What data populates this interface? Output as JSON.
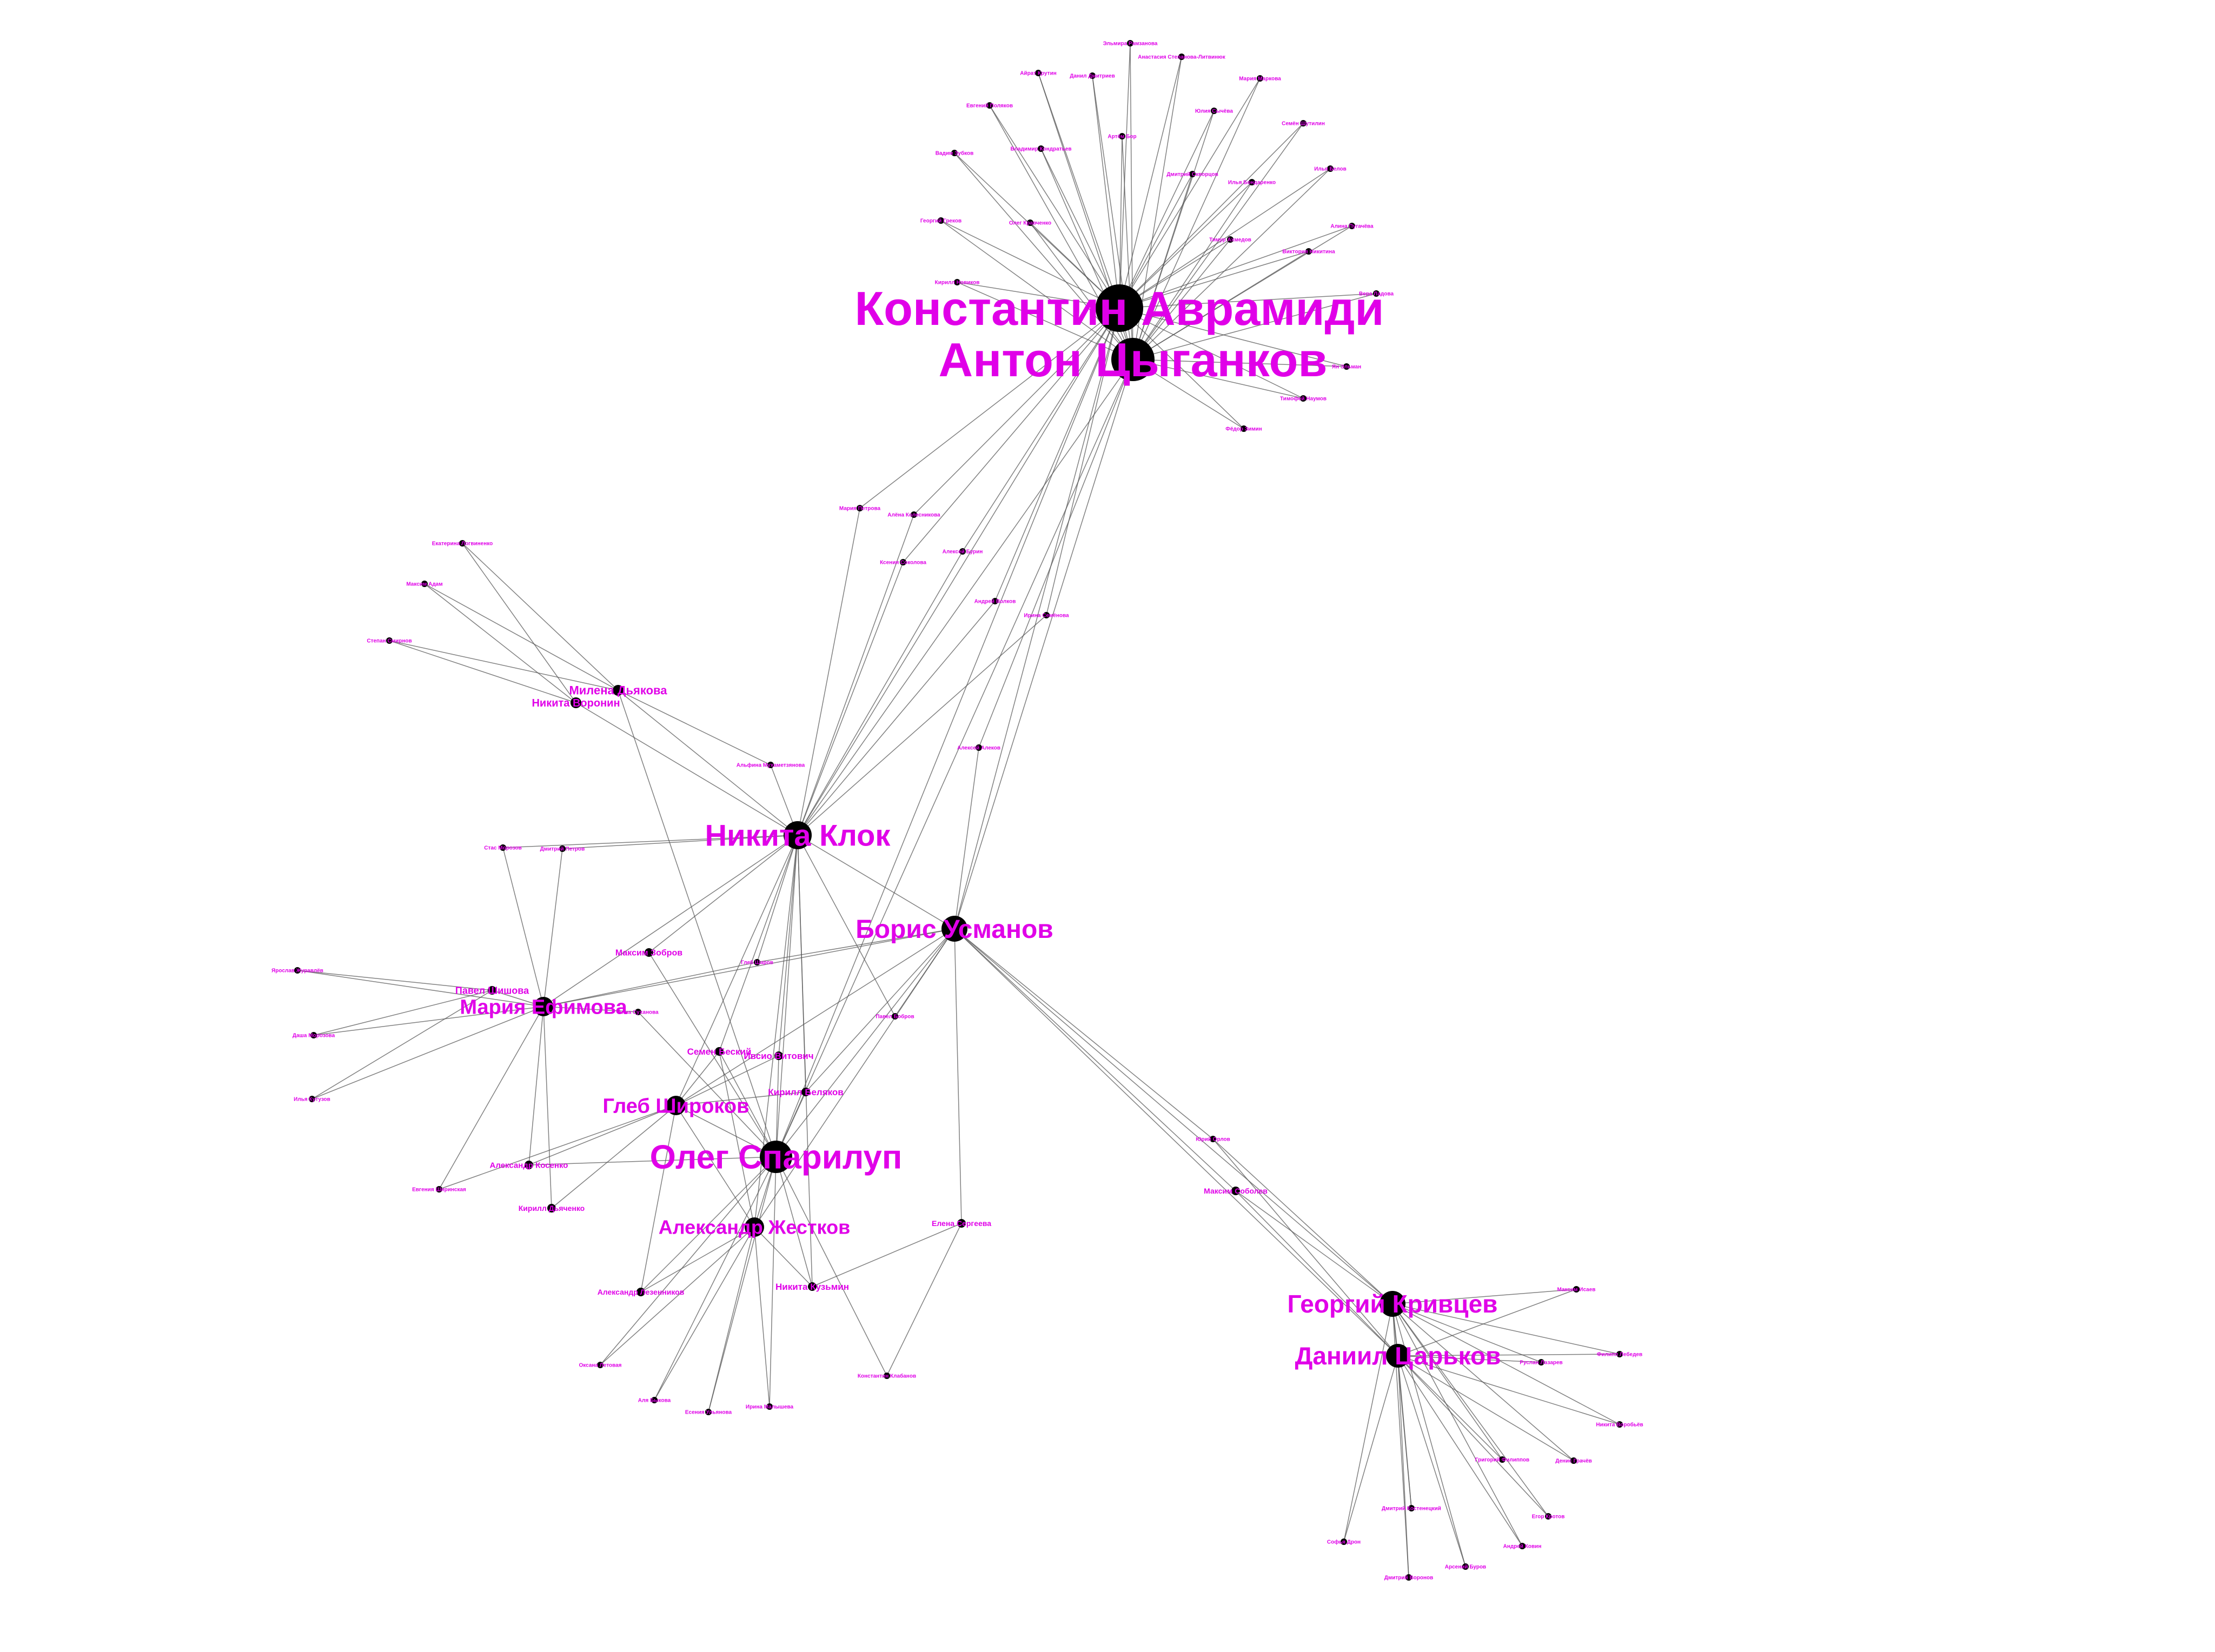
{
  "graph": {
    "colors": {
      "label": "#e000e8",
      "node": "#000000",
      "edge": "#555555",
      "background": "#ffffff"
    },
    "nodes": [
      {
        "id": "kav",
        "label": "Константин Аврамиди"
      },
      {
        "id": "acy",
        "label": "Антон Цыганков"
      },
      {
        "id": "nkl",
        "label": "Никита Клок"
      },
      {
        "id": "bus",
        "label": "Борис Усманов"
      },
      {
        "id": "osp",
        "label": "Олег Спарилуп"
      },
      {
        "id": "azh",
        "label": "Александр Жестков"
      },
      {
        "id": "gsh",
        "label": "Глеб Широков"
      },
      {
        "id": "mef",
        "label": "Мария Ефимова"
      },
      {
        "id": "gkr",
        "label": "Георгий Кривцев"
      },
      {
        "id": "dca",
        "label": "Даниил Царьков"
      },
      {
        "id": "mdy",
        "label": "Милена Дьякова"
      },
      {
        "id": "nvo",
        "label": "Никита Воронин"
      },
      {
        "id": "sbe",
        "label": "Семен Беский"
      },
      {
        "id": "iau",
        "label": "Ивсио Витович"
      },
      {
        "id": "kbe",
        "label": "Кирилл Беляков"
      },
      {
        "id": "nku",
        "label": "Никита Кузьмин"
      },
      {
        "id": "mzo",
        "label": "Максим Зобров"
      },
      {
        "id": "psh",
        "label": "Павел Шишова"
      },
      {
        "id": "ark",
        "label": "Александр Косенко"
      },
      {
        "id": "kdi",
        "label": "Кирилл Дьяченко"
      },
      {
        "id": "ash",
        "label": "Александр Лезенников"
      },
      {
        "id": "egs",
        "label": "Елена Сергеева"
      },
      {
        "id": "mso",
        "label": "Максим Соболев"
      },
      {
        "id": "p1",
        "label": "Эльмира Рамзанова"
      },
      {
        "id": "p2",
        "label": "Айрат Крутин"
      },
      {
        "id": "p3",
        "label": "Данил Дмитриев"
      },
      {
        "id": "p4",
        "label": "Анастасия Степанова-Литвинюк"
      },
      {
        "id": "p5",
        "label": "Мария Маркова"
      },
      {
        "id": "p6",
        "label": "Евгений Поляков"
      },
      {
        "id": "p7",
        "label": "Юлия Сычёва"
      },
      {
        "id": "p8",
        "label": "Семён Шутилин"
      },
      {
        "id": "p9",
        "label": "Вадим Зубков"
      },
      {
        "id": "p10",
        "label": "Владимир Кондратьев"
      },
      {
        "id": "p11",
        "label": "Артём Бор"
      },
      {
        "id": "p12",
        "label": "Дмитрий Скворцов"
      },
      {
        "id": "p13",
        "label": "Илья Белов"
      },
      {
        "id": "p14",
        "label": "Илья Бондаренко"
      },
      {
        "id": "p15",
        "label": "Георгий Греков"
      },
      {
        "id": "p16",
        "label": "Олег Кравченко"
      },
      {
        "id": "p17",
        "label": "Тимур Ахмедов"
      },
      {
        "id": "p18",
        "label": "Алина Пугачёва"
      },
      {
        "id": "p19",
        "label": "Виктория Никитина"
      },
      {
        "id": "p20",
        "label": "Кирилл Новиков"
      },
      {
        "id": "p21",
        "label": "Вера Ладова"
      },
      {
        "id": "p22",
        "label": "Ян Эльман"
      },
      {
        "id": "p23",
        "label": "Тимофей Наумов"
      },
      {
        "id": "p24",
        "label": "Фёдор Зимин"
      },
      {
        "id": "p25",
        "label": "Мария Петрова"
      },
      {
        "id": "p26",
        "label": "Алёна Колесникова"
      },
      {
        "id": "p27",
        "label": "Алексей Бурин"
      },
      {
        "id": "p28",
        "label": "Ксения Соколова"
      },
      {
        "id": "p29",
        "label": "Андрей Волков"
      },
      {
        "id": "p30",
        "label": "Ирина Семёнова"
      },
      {
        "id": "p31",
        "label": "Екатерина Логвиненко"
      },
      {
        "id": "p32",
        "label": "Максим Адам"
      },
      {
        "id": "p33",
        "label": "Степан Смирнов"
      },
      {
        "id": "p34",
        "label": "Альфина Мухаметзянова"
      },
      {
        "id": "p35",
        "label": "Алексей Алеков"
      },
      {
        "id": "p36",
        "label": "Стас Морозов"
      },
      {
        "id": "p37",
        "label": "Дмитрий Петров"
      },
      {
        "id": "p38",
        "label": "Ярослав Журавлёв"
      },
      {
        "id": "p39",
        "label": "Даша Морозова"
      },
      {
        "id": "p40",
        "label": "Илья Кутузов"
      },
      {
        "id": "p41",
        "label": "Евгения Ширинская"
      },
      {
        "id": "p42",
        "label": "Анна Суханова"
      },
      {
        "id": "p43",
        "label": "Глеб Шаров"
      },
      {
        "id": "p44",
        "label": "Павел Бобров"
      },
      {
        "id": "p45",
        "label": "Оксана Летовая"
      },
      {
        "id": "p46",
        "label": "Аля Быкова"
      },
      {
        "id": "p47",
        "label": "Есения Ульянова"
      },
      {
        "id": "p48",
        "label": "Ирина Малышева"
      },
      {
        "id": "p49",
        "label": "Константин Клабанов"
      },
      {
        "id": "p50",
        "label": "Юрий Орлов"
      },
      {
        "id": "p51",
        "label": "Максим Исаев"
      },
      {
        "id": "p52",
        "label": "Филипп Лебедев"
      },
      {
        "id": "p53",
        "label": "Руслан Лазарев"
      },
      {
        "id": "p54",
        "label": "Никита Воробьёв"
      },
      {
        "id": "p55",
        "label": "Григорий Филиппов"
      },
      {
        "id": "p56",
        "label": "Денис Грачёв"
      },
      {
        "id": "p57",
        "label": "Дмитрий Костенецкий"
      },
      {
        "id": "p58",
        "label": "Егор Кротов"
      },
      {
        "id": "p59",
        "label": "Андрей Ковин"
      },
      {
        "id": "p60",
        "label": "Софья Дрон"
      },
      {
        "id": "p61",
        "label": "Арсений Буров"
      },
      {
        "id": "p62",
        "label": "Дмитрий Воронов"
      }
    ],
    "edges": [
      [
        "kav",
        "acy"
      ],
      [
        "kav",
        "nkl"
      ],
      [
        "acy",
        "nkl"
      ],
      [
        "kav",
        "bus"
      ],
      [
        "acy",
        "bus"
      ],
      [
        "kav",
        "osp"
      ],
      [
        "acy",
        "osp"
      ],
      [
        "kav",
        "p1"
      ],
      [
        "kav",
        "p2"
      ],
      [
        "kav",
        "p3"
      ],
      [
        "kav",
        "p4"
      ],
      [
        "kav",
        "p5"
      ],
      [
        "kav",
        "p6"
      ],
      [
        "kav",
        "p7"
      ],
      [
        "kav",
        "p8"
      ],
      [
        "kav",
        "p9"
      ],
      [
        "kav",
        "p10"
      ],
      [
        "kav",
        "p11"
      ],
      [
        "kav",
        "p12"
      ],
      [
        "kav",
        "p13"
      ],
      [
        "kav",
        "p14"
      ],
      [
        "kav",
        "p15"
      ],
      [
        "kav",
        "p16"
      ],
      [
        "kav",
        "p17"
      ],
      [
        "kav",
        "p18"
      ],
      [
        "kav",
        "p19"
      ],
      [
        "kav",
        "p20"
      ],
      [
        "kav",
        "p21"
      ],
      [
        "kav",
        "p22"
      ],
      [
        "kav",
        "p23"
      ],
      [
        "kav",
        "p24"
      ],
      [
        "acy",
        "p1"
      ],
      [
        "acy",
        "p2"
      ],
      [
        "acy",
        "p3"
      ],
      [
        "acy",
        "p4"
      ],
      [
        "acy",
        "p5"
      ],
      [
        "acy",
        "p6"
      ],
      [
        "acy",
        "p7"
      ],
      [
        "acy",
        "p8"
      ],
      [
        "acy",
        "p9"
      ],
      [
        "acy",
        "p10"
      ],
      [
        "acy",
        "p11"
      ],
      [
        "acy",
        "p12"
      ],
      [
        "acy",
        "p13"
      ],
      [
        "acy",
        "p14"
      ],
      [
        "acy",
        "p15"
      ],
      [
        "acy",
        "p16"
      ],
      [
        "acy",
        "p17"
      ],
      [
        "acy",
        "p18"
      ],
      [
        "acy",
        "p19"
      ],
      [
        "acy",
        "p20"
      ],
      [
        "acy",
        "p21"
      ],
      [
        "acy",
        "p22"
      ],
      [
        "acy",
        "p23"
      ],
      [
        "acy",
        "p24"
      ],
      [
        "kav",
        "p25"
      ],
      [
        "kav",
        "p26"
      ],
      [
        "kav",
        "p27"
      ],
      [
        "kav",
        "p28"
      ],
      [
        "kav",
        "p29"
      ],
      [
        "kav",
        "p30"
      ],
      [
        "acy",
        "p35"
      ],
      [
        "nkl",
        "p25"
      ],
      [
        "nkl",
        "p26"
      ],
      [
        "nkl",
        "p27"
      ],
      [
        "nkl",
        "p28"
      ],
      [
        "nkl",
        "p29"
      ],
      [
        "nkl",
        "p30"
      ],
      [
        "nkl",
        "p34"
      ],
      [
        "mdy",
        "p31"
      ],
      [
        "mdy",
        "p32"
      ],
      [
        "mdy",
        "p33"
      ],
      [
        "nvo",
        "p31"
      ],
      [
        "nvo",
        "p32"
      ],
      [
        "nvo",
        "p33"
      ],
      [
        "mdy",
        "nkl"
      ],
      [
        "nvo",
        "nkl"
      ],
      [
        "mdy",
        "p34"
      ],
      [
        "mdy",
        "osp"
      ],
      [
        "nkl",
        "bus"
      ],
      [
        "nkl",
        "osp"
      ],
      [
        "nkl",
        "azh"
      ],
      [
        "nkl",
        "gsh"
      ],
      [
        "nkl",
        "mef"
      ],
      [
        "nkl",
        "sbe"
      ],
      [
        "nkl",
        "iau"
      ],
      [
        "nkl",
        "kbe"
      ],
      [
        "nkl",
        "nku"
      ],
      [
        "nkl",
        "mzo"
      ],
      [
        "nkl",
        "p36"
      ],
      [
        "nkl",
        "p37"
      ],
      [
        "nkl",
        "p43"
      ],
      [
        "nkl",
        "p44"
      ],
      [
        "bus",
        "osp"
      ],
      [
        "bus",
        "azh"
      ],
      [
        "bus",
        "gsh"
      ],
      [
        "bus",
        "mef"
      ],
      [
        "bus",
        "kbe"
      ],
      [
        "bus",
        "p43"
      ],
      [
        "bus",
        "p44"
      ],
      [
        "bus",
        "egs"
      ],
      [
        "bus",
        "gkr"
      ],
      [
        "bus",
        "dca"
      ],
      [
        "bus",
        "mso"
      ],
      [
        "bus",
        "p50"
      ],
      [
        "bus",
        "p35"
      ],
      [
        "mef",
        "p36"
      ],
      [
        "mef",
        "p37"
      ],
      [
        "mef",
        "p38"
      ],
      [
        "mef",
        "p39"
      ],
      [
        "mef",
        "p40"
      ],
      [
        "mef",
        "p41"
      ],
      [
        "mef",
        "psh"
      ],
      [
        "mef",
        "ark"
      ],
      [
        "mef",
        "kdi"
      ],
      [
        "mef",
        "p42"
      ],
      [
        "mef",
        "p43"
      ],
      [
        "psh",
        "p38"
      ],
      [
        "psh",
        "p39"
      ],
      [
        "psh",
        "p40"
      ],
      [
        "gsh",
        "osp"
      ],
      [
        "gsh",
        "azh"
      ],
      [
        "gsh",
        "ark"
      ],
      [
        "gsh",
        "kdi"
      ],
      [
        "gsh",
        "p41"
      ],
      [
        "gsh",
        "sbe"
      ],
      [
        "gsh",
        "iau"
      ],
      [
        "gsh",
        "kbe"
      ],
      [
        "gsh",
        "ash"
      ],
      [
        "osp",
        "azh"
      ],
      [
        "osp",
        "sbe"
      ],
      [
        "osp",
        "iau"
      ],
      [
        "osp",
        "kbe"
      ],
      [
        "osp",
        "nku"
      ],
      [
        "osp",
        "mzo"
      ],
      [
        "osp",
        "ark"
      ],
      [
        "osp",
        "p45"
      ],
      [
        "osp",
        "p46"
      ],
      [
        "osp",
        "p47"
      ],
      [
        "osp",
        "p48"
      ],
      [
        "osp",
        "p49"
      ],
      [
        "osp",
        "p42"
      ],
      [
        "osp",
        "ash"
      ],
      [
        "azh",
        "p45"
      ],
      [
        "azh",
        "p46"
      ],
      [
        "azh",
        "p47"
      ],
      [
        "azh",
        "p48"
      ],
      [
        "azh",
        "nku"
      ],
      [
        "azh",
        "ash"
      ],
      [
        "azh",
        "sbe"
      ],
      [
        "egs",
        "p49"
      ],
      [
        "egs",
        "nku"
      ],
      [
        "gkr",
        "dca"
      ],
      [
        "gkr",
        "mso"
      ],
      [
        "dca",
        "mso"
      ],
      [
        "gkr",
        "p50"
      ],
      [
        "dca",
        "p50"
      ],
      [
        "gkr",
        "p51"
      ],
      [
        "gkr",
        "p52"
      ],
      [
        "gkr",
        "p53"
      ],
      [
        "gkr",
        "p54"
      ],
      [
        "gkr",
        "p55"
      ],
      [
        "gkr",
        "p56"
      ],
      [
        "gkr",
        "p57"
      ],
      [
        "gkr",
        "p58"
      ],
      [
        "gkr",
        "p59"
      ],
      [
        "gkr",
        "p60"
      ],
      [
        "gkr",
        "p61"
      ],
      [
        "gkr",
        "p62"
      ],
      [
        "dca",
        "p51"
      ],
      [
        "dca",
        "p52"
      ],
      [
        "dca",
        "p53"
      ],
      [
        "dca",
        "p54"
      ],
      [
        "dca",
        "p55"
      ],
      [
        "dca",
        "p56"
      ],
      [
        "dca",
        "p57"
      ],
      [
        "dca",
        "p58"
      ],
      [
        "dca",
        "p59"
      ],
      [
        "dca",
        "p60"
      ],
      [
        "dca",
        "p61"
      ],
      [
        "dca",
        "p62"
      ]
    ]
  }
}
